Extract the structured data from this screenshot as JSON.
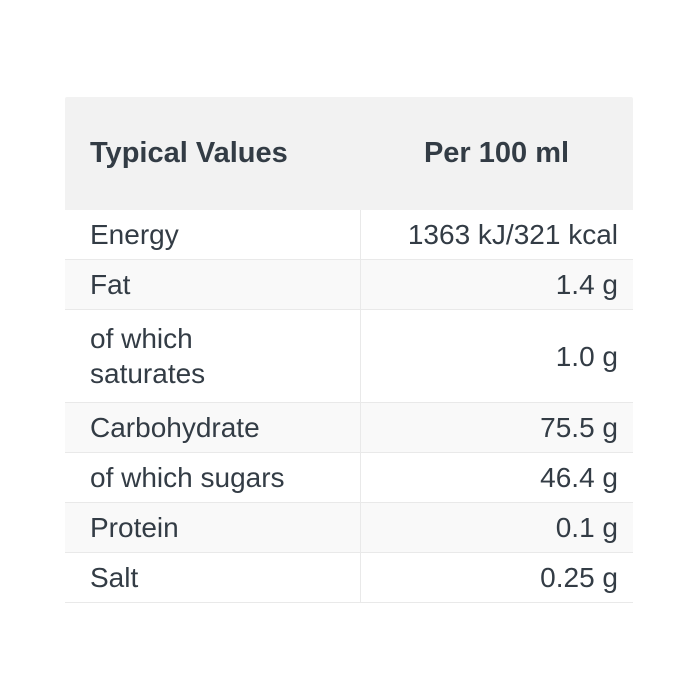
{
  "table": {
    "header": {
      "col_label": "Typical Values",
      "col_value": "Per 100 ml"
    },
    "rows": [
      {
        "label": "Energy",
        "value": "1363 kJ/321 kcal"
      },
      {
        "label": "Fat",
        "value": "1.4 g"
      },
      {
        "label": "of which\nsaturates",
        "value": "1.0 g"
      },
      {
        "label": "Carbohydrate",
        "value": "75.5 g"
      },
      {
        "label": "of which sugars",
        "value": "46.4 g"
      },
      {
        "label": "Protein",
        "value": "0.1 g"
      },
      {
        "label": "Salt",
        "value": "0.25 g"
      }
    ],
    "colors": {
      "header_bg": "#f2f2f2",
      "zebra_bg": "#f9f9f9",
      "border": "#e9e9e9",
      "text": "#333c45"
    }
  }
}
